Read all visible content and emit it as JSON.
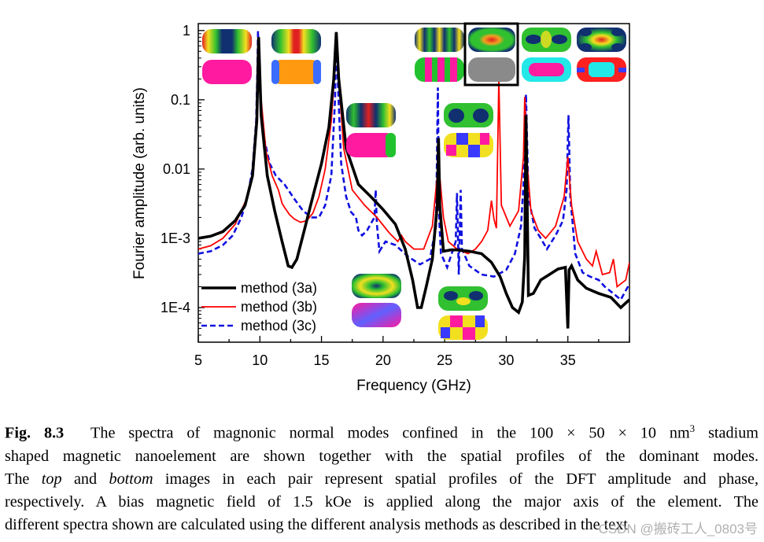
{
  "colors": {
    "method_3a": "#000000",
    "method_3b": "#ff0000",
    "method_3c": "#1010e0",
    "magenta": "#ff1aa0",
    "orange": "#ff9a10",
    "gray": "#8a8a8a",
    "green": "#22c22e",
    "cyan": "#22e8e8"
  },
  "chart_data": {
    "type": "line",
    "xlabel": "Frequency (GHz)",
    "ylabel": "Fourier amplitude (arb. units)",
    "xlim": [
      5,
      40
    ],
    "ylim_log10": [
      -4.5,
      0.1
    ],
    "y_scale": "log",
    "x_ticks": [
      5,
      10,
      15,
      20,
      25,
      30,
      35
    ],
    "x_tick_labels": [
      "5",
      "10",
      "15",
      "20",
      "25",
      "30",
      "35"
    ],
    "y_ticks": [
      0.0001,
      0.001,
      0.01,
      0.1,
      1
    ],
    "y_tick_labels": [
      "1E-4",
      "1E-3",
      "0.01",
      "0.1",
      "1"
    ],
    "legend": {
      "placement": "bottom-left",
      "entries": [
        "method (3a)",
        "method (3b)",
        "method (3c)"
      ]
    },
    "series": [
      {
        "name": "method (3a)",
        "style": "solid-thick",
        "x": [
          5,
          6,
          7,
          8,
          8.8,
          9.4,
          9.75,
          9.9,
          10.1,
          10.6,
          11.2,
          11.8,
          12.3,
          12.6,
          13,
          13.6,
          14.3,
          15,
          15.6,
          16,
          16.2,
          16.4,
          17,
          18,
          19,
          20,
          21,
          21.8,
          22.4,
          22.8,
          23.1,
          23.5,
          24,
          24.4,
          24.5,
          24.6,
          24.9,
          25.5,
          26,
          27,
          28,
          28.8,
          29.5,
          30,
          30.5,
          31,
          31.3,
          31.5,
          31.6,
          31.8,
          32.2,
          32.8,
          33.5,
          34.2,
          34.8,
          35,
          35.1,
          35.3,
          35.8,
          36.5,
          37.5,
          38.5,
          39.3,
          40
        ],
        "y": [
          0.001,
          0.00107,
          0.00125,
          0.0018,
          0.003,
          0.008,
          0.05,
          0.8,
          0.06,
          0.008,
          0.0025,
          0.0009,
          0.0004,
          0.00038,
          0.0005,
          0.0013,
          0.004,
          0.012,
          0.04,
          0.2,
          0.95,
          0.2,
          0.02,
          0.006,
          0.004,
          0.0026,
          0.0016,
          0.0007,
          0.00025,
          0.0001,
          0.0001,
          0.0002,
          0.0005,
          0.003,
          0.028,
          0.003,
          0.00065,
          0.00068,
          0.00068,
          0.00065,
          0.0006,
          0.00045,
          0.00028,
          0.00016,
          0.0001,
          8.5e-05,
          0.00012,
          0.00055,
          0.06,
          0.00015,
          0.00016,
          0.00025,
          0.0003,
          0.00036,
          0.00038,
          5e-05,
          0.00035,
          0.0004,
          0.00025,
          0.00019,
          0.00016,
          0.00014,
          0.0001,
          0.00013
        ]
      },
      {
        "name": "method (3b)",
        "style": "solid-thin",
        "x": [
          5,
          6,
          7,
          8,
          9,
          9.5,
          9.8,
          9.9,
          10.1,
          10.5,
          11,
          11.5,
          11.8,
          12,
          12.4,
          12.8,
          13.3,
          13.8,
          14.3,
          14.8,
          15.3,
          15.8,
          16.1,
          16.2,
          16.4,
          16.8,
          17.5,
          18.5,
          19.5,
          20.5,
          21.2,
          21.5,
          21.8,
          22.5,
          23.3,
          24,
          24.4,
          24.5,
          24.6,
          24.9,
          25.3,
          26,
          26.9,
          27.5,
          28,
          28.5,
          28.8,
          29,
          29.2,
          29.4,
          29.6,
          30.3,
          31,
          31.4,
          31.5,
          31.7,
          32,
          32.6,
          33.2,
          34,
          34.7,
          35,
          35.3,
          35.8,
          36.5,
          37,
          37.3,
          37.8,
          38.4,
          38.7,
          39,
          39.7,
          40
        ],
        "y": [
          0.0007,
          0.00078,
          0.001,
          0.0016,
          0.004,
          0.01,
          0.1,
          0.8,
          0.1,
          0.018,
          0.008,
          0.005,
          0.0032,
          0.0028,
          0.0022,
          0.0019,
          0.0017,
          0.0018,
          0.0023,
          0.004,
          0.01,
          0.05,
          0.3,
          0.95,
          0.2,
          0.02,
          0.005,
          0.003,
          0.002,
          0.0012,
          0.0009,
          0.0011,
          0.0009,
          0.0007,
          0.0007,
          0.0015,
          0.008,
          0.02,
          0.008,
          0.002,
          0.0009,
          0.0007,
          0.0006,
          0.0007,
          0.0009,
          0.0013,
          0.0035,
          0.0019,
          0.0014,
          0.2,
          0.003,
          0.0015,
          0.0025,
          0.015,
          0.11,
          0.012,
          0.0025,
          0.0013,
          0.001,
          0.0015,
          0.004,
          0.015,
          0.003,
          0.0009,
          0.0005,
          0.0004,
          0.00065,
          0.0003,
          0.00032,
          0.0005,
          0.0002,
          0.00025,
          0.00045
        ]
      },
      {
        "name": "method (3c)",
        "style": "dashed",
        "x": [
          5,
          6,
          7,
          7.8,
          8.5,
          9,
          9.4,
          9.7,
          9.8,
          9.85,
          10,
          10.3,
          10.8,
          11.3,
          12,
          12.8,
          13.5,
          14.2,
          14.8,
          15.3,
          15.8,
          16.1,
          16.2,
          16.35,
          16.6,
          17,
          17.4,
          17.8,
          18,
          18.3,
          18.7,
          19.3,
          19.4,
          19.5,
          19.7,
          20.2,
          21,
          22,
          23,
          23.8,
          24.3,
          24.45,
          24.55,
          24.7,
          25.2,
          25.9,
          26,
          26.15,
          26.3,
          26.4,
          27,
          28,
          29,
          30,
          30.7,
          31.2,
          31.4,
          31.6,
          31.8,
          32.3,
          32.8,
          33.3,
          34,
          34.6,
          34.9,
          35.05,
          35.2,
          35.6,
          36.2,
          36.8,
          37.5,
          38,
          38.5,
          39.3,
          40
        ],
        "y": [
          0.0006,
          0.00065,
          0.0008,
          0.0011,
          0.002,
          0.004,
          0.01,
          0.05,
          0.3,
          0.98,
          0.15,
          0.03,
          0.012,
          0.008,
          0.006,
          0.0037,
          0.0025,
          0.002,
          0.002,
          0.003,
          0.008,
          0.1,
          0.9,
          0.15,
          0.012,
          0.004,
          0.0024,
          0.002,
          0.0013,
          0.0011,
          0.0013,
          0.002,
          0.005,
          0.0016,
          0.00065,
          0.0009,
          0.0008,
          0.00055,
          0.00042,
          0.0005,
          0.0015,
          0.15,
          0.002,
          0.0006,
          0.00038,
          0.0009,
          0.0045,
          0.0003,
          0.005,
          0.0007,
          0.0004,
          0.0003,
          0.00028,
          0.00035,
          0.0006,
          0.0015,
          0.006,
          0.12,
          0.004,
          0.0014,
          0.001,
          0.0007,
          0.0011,
          0.0018,
          0.005,
          0.06,
          0.004,
          0.0006,
          0.00032,
          0.00028,
          0.00025,
          0.0002,
          0.00017,
          0.00013,
          0.00022
        ]
      }
    ]
  },
  "mode_insets": [
    {
      "id": "mode-9.8",
      "top_pattern": "wide dark-blue center band with green and red edges",
      "bottom_phase": "uniform magenta"
    },
    {
      "id": "mode-16.2",
      "top_pattern": "red center band with yellow and green sides",
      "bottom_phase": "uniform orange with blue end caps"
    },
    {
      "id": "mode-24.5",
      "top_pattern": "red vertical band with green and blue stripes",
      "bottom_phase": "magenta with green right cap"
    },
    {
      "id": "mode-24.5b",
      "top_pattern": "multiple narrow vertical stripes",
      "bottom_phase": "green and magenta vertical stripes"
    },
    {
      "id": "mode-29.4",
      "top_pattern": "central red ellipse on green (highlighted)",
      "bottom_phase": "uniform gray"
    },
    {
      "id": "mode-31.6",
      "top_pattern": "green lobes with dark blue crossing lines",
      "bottom_phase": "cyan and magenta regions"
    },
    {
      "id": "mode-35",
      "top_pattern": "red center with dark corner lobes",
      "bottom_phase": "red, cyan and blue quadrants"
    },
    {
      "id": "mode-27",
      "top_pattern": "dark blue oval lobes on green",
      "bottom_phase": "yellow, blue and magenta checkerboard"
    },
    {
      "id": "mode-21",
      "top_pattern": "green and yellow vertical bands",
      "bottom_phase": "magenta and blue blend"
    },
    {
      "id": "mode-26",
      "top_pattern": "yellow-green horizontal lobes",
      "bottom_phase": "yellow and magenta checkerboard"
    }
  ],
  "caption": {
    "figure_label": "Fig. 8.3",
    "line1_text": "The spectra of magnonic normal modes confined in the 100 × 50 × 10 nm",
    "line1_sup": "3",
    "line1_tail": "stadium",
    "line2": "shaped magnetic nanoelement are shown together with the spatial profiles of the dominant modes.",
    "line3_pre": "The",
    "line3_top": "top",
    "line3_mid": "and",
    "line3_bottom": "bottom",
    "line3_post": "images in each pair represent spatial profiles of the DFT amplitude and phase,",
    "line4": "respectively. A bias magnetic field of 1.5 kOe is applied along the major axis of the element. The",
    "line5": "different spectra shown are calculated using the different analysis methods as described in the text"
  },
  "watermark": "CSDN @搬砖工人_0803号"
}
